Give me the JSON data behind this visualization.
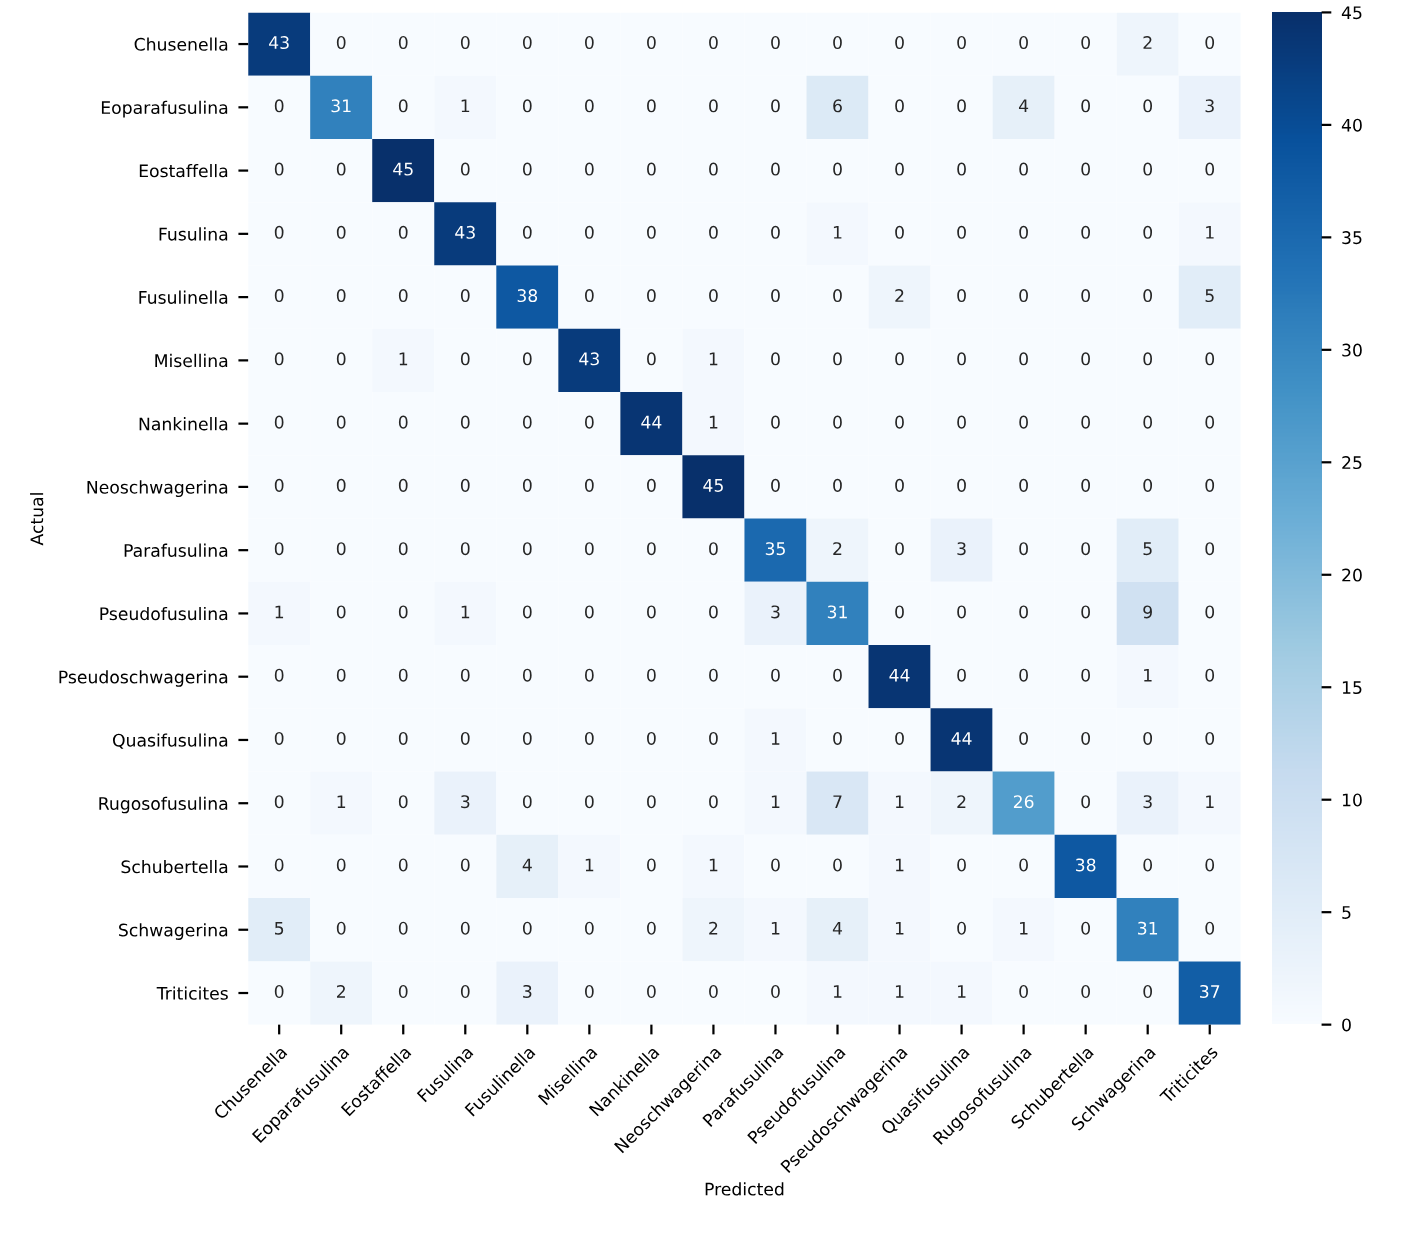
{
  "chart_data": {
    "type": "heatmap",
    "xlabel": "Predicted",
    "ylabel": "Actual",
    "categories": [
      "Chusenella",
      "Eoparafusulina",
      "Eostaffella",
      "Fusulina",
      "Fusulinella",
      "Misellina",
      "Nankinella",
      "Neoschwagerina",
      "Parafusulina",
      "Pseudofusulina",
      "Pseudoschwagerina",
      "Quasifusulina",
      "Rugosofusulina",
      "Schubertella",
      "Schwagerina",
      "Triticites"
    ],
    "y_categories": [
      "Chusenella",
      "Eoparafusulina",
      "Eostaffella",
      "Fusulina",
      "Fusulinella",
      "Misellina",
      "Nankinella",
      "Neoschwagerina",
      "Parafusulina",
      "Pseudofusulina",
      "Pseudoschwagerina",
      "Quasifusulina",
      "Rugosofusulina",
      "Schubertella",
      "Schwagerina",
      "Triticites"
    ],
    "cells": [
      [
        43,
        0,
        0,
        0,
        0,
        0,
        0,
        0,
        0,
        0,
        0,
        0,
        0,
        0,
        2,
        0
      ],
      [
        0,
        31,
        0,
        1,
        0,
        0,
        0,
        0,
        0,
        6,
        0,
        0,
        4,
        0,
        0,
        3
      ],
      [
        0,
        0,
        45,
        0,
        0,
        0,
        0,
        0,
        0,
        0,
        0,
        0,
        0,
        0,
        0,
        0
      ],
      [
        0,
        0,
        0,
        43,
        0,
        0,
        0,
        0,
        0,
        1,
        0,
        0,
        0,
        0,
        0,
        1
      ],
      [
        0,
        0,
        0,
        0,
        38,
        0,
        0,
        0,
        0,
        0,
        2,
        0,
        0,
        0,
        0,
        5
      ],
      [
        0,
        0,
        1,
        0,
        0,
        43,
        0,
        1,
        0,
        0,
        0,
        0,
        0,
        0,
        0,
        0
      ],
      [
        0,
        0,
        0,
        0,
        0,
        0,
        44,
        1,
        0,
        0,
        0,
        0,
        0,
        0,
        0,
        0
      ],
      [
        0,
        0,
        0,
        0,
        0,
        0,
        0,
        45,
        0,
        0,
        0,
        0,
        0,
        0,
        0,
        0
      ],
      [
        0,
        0,
        0,
        0,
        0,
        0,
        0,
        0,
        35,
        2,
        0,
        3,
        0,
        0,
        5,
        0
      ],
      [
        1,
        0,
        0,
        1,
        0,
        0,
        0,
        0,
        3,
        31,
        0,
        0,
        0,
        0,
        9,
        0
      ],
      [
        0,
        0,
        0,
        0,
        0,
        0,
        0,
        0,
        0,
        0,
        44,
        0,
        0,
        0,
        1,
        0
      ],
      [
        0,
        0,
        0,
        0,
        0,
        0,
        0,
        0,
        1,
        0,
        0,
        44,
        0,
        0,
        0,
        0
      ],
      [
        0,
        1,
        0,
        3,
        0,
        0,
        0,
        0,
        1,
        7,
        1,
        2,
        26,
        0,
        3,
        1
      ],
      [
        0,
        0,
        0,
        0,
        4,
        1,
        0,
        1,
        0,
        0,
        1,
        0,
        0,
        38,
        0,
        0
      ],
      [
        5,
        0,
        0,
        0,
        0,
        0,
        0,
        2,
        1,
        4,
        1,
        0,
        1,
        0,
        31,
        0
      ],
      [
        0,
        2,
        0,
        0,
        3,
        0,
        0,
        0,
        0,
        1,
        1,
        1,
        0,
        0,
        0,
        37
      ]
    ],
    "clim": [
      0,
      45
    ],
    "cticks": [
      0,
      5,
      10,
      15,
      20,
      25,
      30,
      35,
      40,
      45
    ],
    "data_labels": true
  }
}
